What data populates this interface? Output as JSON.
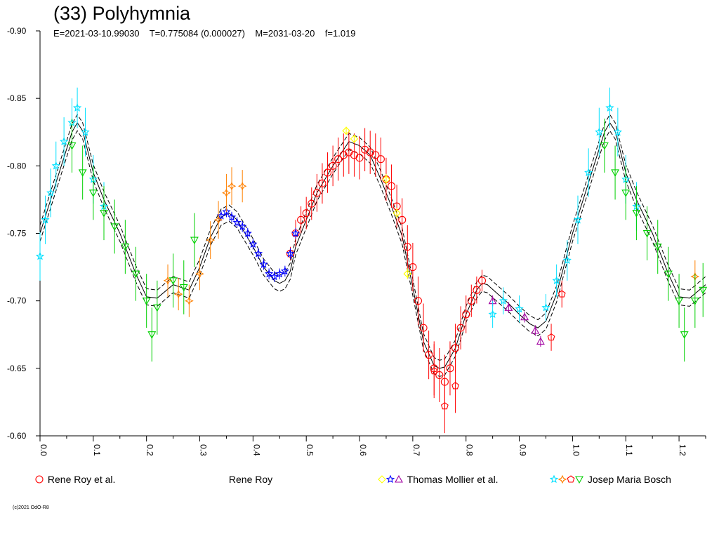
{
  "header": {
    "title": "(33) Polyhymnia",
    "subtitle": "E=2021-03-10.99030    T=0.775084 (0.000027)    M=2031-03-20    f=1.019"
  },
  "legend": [
    {
      "label": "Rene Roy et al.",
      "symbols": [
        {
          "shape": "circle",
          "color": "#ff0000"
        }
      ]
    },
    {
      "label": "Rene Roy",
      "symbols": []
    },
    {
      "label": "Thomas Mollier et al.",
      "symbols": [
        {
          "shape": "diamond",
          "color": "#ffff00"
        },
        {
          "shape": "star",
          "color": "#0000ff"
        },
        {
          "shape": "triangle",
          "color": "#a000a0"
        }
      ]
    },
    {
      "label": "Josep Maria Bosch",
      "symbols": [
        {
          "shape": "star",
          "color": "#00e0ff"
        },
        {
          "shape": "star4",
          "color": "#ff8000"
        },
        {
          "shape": "pentagon",
          "color": "#ff0000"
        },
        {
          "shape": "triangle-down",
          "color": "#00d000"
        }
      ]
    }
  ],
  "copyright": "(c)2021 OdO-R8",
  "chart_data": {
    "type": "scatter",
    "title": "(33) Polyhymnia",
    "xlim": [
      0.0,
      1.25
    ],
    "ylim": [
      -0.9,
      -0.6
    ],
    "y_inverted": true,
    "grid": false,
    "x_ticks": [
      "0.0",
      "0.1",
      "0.2",
      "0.3",
      "0.4",
      "0.5",
      "0.6",
      "0.7",
      "0.8",
      "0.9",
      "1.0",
      "1.1",
      "1.2"
    ],
    "x_tick_values": [
      0.0,
      0.1,
      0.2,
      0.3,
      0.4,
      0.5,
      0.6,
      0.7,
      0.8,
      0.9,
      1.0,
      1.1,
      1.2
    ],
    "y_ticks": [
      "-0.90",
      "-0.85",
      "-0.80",
      "-0.75",
      "-0.70",
      "-0.65",
      "-0.60"
    ],
    "y_tick_values": [
      -0.9,
      -0.85,
      -0.8,
      -0.75,
      -0.7,
      -0.65,
      -0.6
    ],
    "model_curve": {
      "x": [
        0.0,
        0.02,
        0.04,
        0.06,
        0.07,
        0.08,
        0.1,
        0.12,
        0.15,
        0.18,
        0.2,
        0.22,
        0.25,
        0.28,
        0.3,
        0.32,
        0.34,
        0.355,
        0.37,
        0.4,
        0.42,
        0.44,
        0.45,
        0.46,
        0.47,
        0.48,
        0.5,
        0.52,
        0.55,
        0.57,
        0.58,
        0.6,
        0.62,
        0.64,
        0.66,
        0.68,
        0.7,
        0.72,
        0.74,
        0.75,
        0.76,
        0.78,
        0.8,
        0.82,
        0.83,
        0.84,
        0.86,
        0.88,
        0.9,
        0.92,
        0.935,
        0.95,
        0.97,
        1.0,
        1.02,
        1.04,
        1.06,
        1.07,
        1.08,
        1.1,
        1.12,
        1.15,
        1.18,
        1.2,
        1.22,
        1.25
      ],
      "y": [
        -0.75,
        -0.775,
        -0.8,
        -0.825,
        -0.832,
        -0.826,
        -0.795,
        -0.775,
        -0.75,
        -0.72,
        -0.703,
        -0.702,
        -0.712,
        -0.708,
        -0.725,
        -0.747,
        -0.762,
        -0.765,
        -0.76,
        -0.74,
        -0.725,
        -0.715,
        -0.713,
        -0.715,
        -0.722,
        -0.74,
        -0.76,
        -0.78,
        -0.8,
        -0.812,
        -0.818,
        -0.815,
        -0.808,
        -0.79,
        -0.77,
        -0.748,
        -0.71,
        -0.67,
        -0.652,
        -0.65,
        -0.651,
        -0.665,
        -0.69,
        -0.708,
        -0.713,
        -0.712,
        -0.705,
        -0.698,
        -0.69,
        -0.683,
        -0.68,
        -0.685,
        -0.705,
        -0.75,
        -0.775,
        -0.8,
        -0.825,
        -0.832,
        -0.826,
        -0.795,
        -0.775,
        -0.75,
        -0.72,
        -0.703,
        -0.702,
        -0.712
      ],
      "band": 0.006
    },
    "series": [
      {
        "name": "Rene Roy et al.",
        "marker": "circle",
        "color": "#ff0000",
        "points": [
          [
            0.47,
            -0.735,
            0.005
          ],
          [
            0.48,
            -0.75,
            0.01
          ],
          [
            0.49,
            -0.76,
            0.01
          ],
          [
            0.5,
            -0.765,
            0.012
          ],
          [
            0.51,
            -0.772,
            0.012
          ],
          [
            0.52,
            -0.78,
            0.014
          ],
          [
            0.53,
            -0.787,
            0.015
          ],
          [
            0.54,
            -0.795,
            0.015
          ],
          [
            0.55,
            -0.8,
            0.015
          ],
          [
            0.56,
            -0.805,
            0.016
          ],
          [
            0.57,
            -0.808,
            0.016
          ],
          [
            0.58,
            -0.81,
            0.016
          ],
          [
            0.59,
            -0.808,
            0.016
          ],
          [
            0.6,
            -0.806,
            0.016
          ],
          [
            0.61,
            -0.812,
            0.016
          ],
          [
            0.62,
            -0.81,
            0.016
          ],
          [
            0.63,
            -0.808,
            0.016
          ],
          [
            0.64,
            -0.805,
            0.016
          ],
          [
            0.65,
            -0.79,
            0.016
          ],
          [
            0.66,
            -0.785,
            0.016
          ],
          [
            0.67,
            -0.77,
            0.016
          ],
          [
            0.68,
            -0.76,
            0.016
          ],
          [
            0.69,
            -0.74,
            0.016
          ],
          [
            0.7,
            -0.725,
            0.018
          ],
          [
            0.71,
            -0.7,
            0.018
          ],
          [
            0.72,
            -0.68,
            0.018
          ],
          [
            0.73,
            -0.66,
            0.018
          ],
          [
            0.74,
            -0.65,
            0.02
          ],
          [
            0.75,
            -0.645,
            0.02
          ],
          [
            0.76,
            -0.64,
            0.02
          ],
          [
            0.77,
            -0.65,
            0.02
          ],
          [
            0.78,
            -0.665,
            0.018
          ],
          [
            0.79,
            -0.68,
            0.016
          ],
          [
            0.8,
            -0.69,
            0.014
          ],
          [
            0.81,
            -0.7,
            0.012
          ],
          [
            0.82,
            -0.708,
            0.01
          ],
          [
            0.83,
            -0.715,
            0.008
          ]
        ]
      },
      {
        "name": "",
        "marker": "diamond",
        "color": "#ffff00",
        "points": [
          [
            0.575,
            -0.826,
            0.003
          ],
          [
            0.59,
            -0.82,
            0.003
          ],
          [
            0.65,
            -0.79,
            0.004
          ],
          [
            0.67,
            -0.765,
            0.004
          ],
          [
            0.69,
            -0.72,
            0.004
          ]
        ]
      },
      {
        "name": "",
        "marker": "star",
        "color": "#0000ff",
        "points": [
          [
            0.34,
            -0.763,
            0.004
          ],
          [
            0.35,
            -0.766,
            0.004
          ],
          [
            0.36,
            -0.762,
            0.004
          ],
          [
            0.37,
            -0.758,
            0.004
          ],
          [
            0.38,
            -0.755,
            0.004
          ],
          [
            0.39,
            -0.75,
            0.004
          ],
          [
            0.4,
            -0.742,
            0.004
          ],
          [
            0.41,
            -0.735,
            0.004
          ],
          [
            0.42,
            -0.727,
            0.004
          ],
          [
            0.43,
            -0.72,
            0.004
          ],
          [
            0.44,
            -0.718,
            0.004
          ],
          [
            0.45,
            -0.72,
            0.004
          ],
          [
            0.46,
            -0.722,
            0.004
          ],
          [
            0.47,
            -0.735,
            0.004
          ],
          [
            0.48,
            -0.75,
            0.004
          ]
        ]
      },
      {
        "name": "",
        "marker": "triangle",
        "color": "#a000a0",
        "points": [
          [
            0.85,
            -0.7,
            0.004
          ],
          [
            0.88,
            -0.695,
            0.004
          ],
          [
            0.91,
            -0.688,
            0.004
          ],
          [
            0.93,
            -0.678,
            0.004
          ],
          [
            0.94,
            -0.67,
            0.004
          ]
        ]
      },
      {
        "name": "",
        "marker": "star",
        "color": "#00e0ff",
        "points": [
          [
            0.0,
            -0.733,
            0.018
          ],
          [
            0.01,
            -0.76,
            0.018
          ],
          [
            0.02,
            -0.78,
            0.018
          ],
          [
            0.03,
            -0.8,
            0.018
          ],
          [
            0.045,
            -0.818,
            0.018
          ],
          [
            0.06,
            -0.832,
            0.018
          ],
          [
            0.07,
            -0.843,
            0.015
          ],
          [
            0.085,
            -0.825,
            0.018
          ],
          [
            0.1,
            -0.79,
            0.018
          ],
          [
            0.12,
            -0.77,
            0.018
          ],
          [
            0.85,
            -0.69,
            0.01
          ],
          [
            0.87,
            -0.7,
            0.01
          ],
          [
            0.9,
            -0.694,
            0.01
          ],
          [
            0.95,
            -0.695,
            0.01
          ],
          [
            0.97,
            -0.715,
            0.012
          ],
          [
            0.99,
            -0.73,
            0.015
          ],
          [
            1.01,
            -0.76,
            0.018
          ],
          [
            1.03,
            -0.795,
            0.018
          ],
          [
            1.05,
            -0.825,
            0.018
          ],
          [
            1.07,
            -0.843,
            0.015
          ],
          [
            1.085,
            -0.825,
            0.018
          ],
          [
            1.1,
            -0.79,
            0.018
          ],
          [
            1.12,
            -0.77,
            0.018
          ]
        ]
      },
      {
        "name": "",
        "marker": "star4",
        "color": "#ff8000",
        "points": [
          [
            0.24,
            -0.715,
            0.012
          ],
          [
            0.26,
            -0.705,
            0.012
          ],
          [
            0.28,
            -0.7,
            0.012
          ],
          [
            0.3,
            -0.72,
            0.012
          ],
          [
            0.32,
            -0.745,
            0.014
          ],
          [
            0.335,
            -0.76,
            0.014
          ],
          [
            0.35,
            -0.78,
            0.014
          ],
          [
            0.36,
            -0.785,
            0.014
          ],
          [
            0.38,
            -0.785,
            0.012
          ],
          [
            1.23,
            -0.718,
            0.012
          ]
        ]
      },
      {
        "name": "",
        "marker": "pentagon",
        "color": "#ff0000",
        "points": [
          [
            0.74,
            -0.648,
            0.02
          ],
          [
            0.76,
            -0.622,
            0.02
          ],
          [
            0.78,
            -0.637,
            0.02
          ],
          [
            0.96,
            -0.673,
            0.01
          ],
          [
            0.98,
            -0.705,
            0.01
          ]
        ]
      },
      {
        "name": "",
        "marker": "triangle-down",
        "color": "#00d000",
        "points": [
          [
            0.06,
            -0.815,
            0.02
          ],
          [
            0.08,
            -0.795,
            0.02
          ],
          [
            0.1,
            -0.78,
            0.02
          ],
          [
            0.12,
            -0.765,
            0.02
          ],
          [
            0.14,
            -0.755,
            0.02
          ],
          [
            0.16,
            -0.74,
            0.02
          ],
          [
            0.18,
            -0.72,
            0.02
          ],
          [
            0.2,
            -0.7,
            0.02
          ],
          [
            0.21,
            -0.675,
            0.02
          ],
          [
            0.22,
            -0.695,
            0.02
          ],
          [
            0.25,
            -0.715,
            0.02
          ],
          [
            0.27,
            -0.71,
            0.02
          ],
          [
            0.29,
            -0.745,
            0.02
          ],
          [
            1.06,
            -0.815,
            0.02
          ],
          [
            1.08,
            -0.795,
            0.02
          ],
          [
            1.1,
            -0.78,
            0.02
          ],
          [
            1.12,
            -0.765,
            0.02
          ],
          [
            1.14,
            -0.75,
            0.02
          ],
          [
            1.16,
            -0.74,
            0.02
          ],
          [
            1.18,
            -0.72,
            0.02
          ],
          [
            1.2,
            -0.7,
            0.02
          ],
          [
            1.21,
            -0.675,
            0.02
          ],
          [
            1.23,
            -0.7,
            0.02
          ],
          [
            1.245,
            -0.708,
            0.02
          ]
        ]
      }
    ]
  }
}
